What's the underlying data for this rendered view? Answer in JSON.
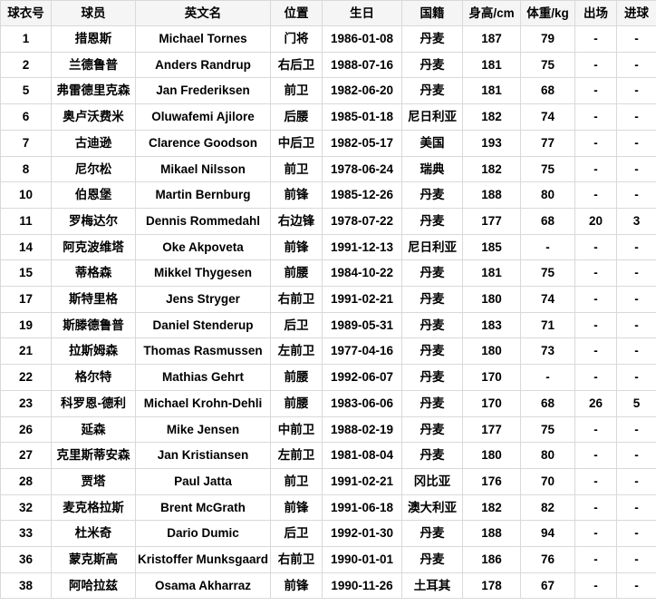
{
  "colors": {
    "header_background": "#f5f5f5",
    "row_background": "#ffffff",
    "grid_border": "#d9d9d9",
    "text": "#000000"
  },
  "table": {
    "columns": [
      {
        "key": "number",
        "label": "球衣号"
      },
      {
        "key": "name-cn",
        "label": "球员"
      },
      {
        "key": "name-en",
        "label": "英文名"
      },
      {
        "key": "position",
        "label": "位置"
      },
      {
        "key": "birthday",
        "label": "生日"
      },
      {
        "key": "nationality",
        "label": "国籍"
      },
      {
        "key": "height",
        "label": "身高/cm"
      },
      {
        "key": "weight",
        "label": "体重/kg"
      },
      {
        "key": "appearances",
        "label": "出场"
      },
      {
        "key": "goals",
        "label": "进球"
      }
    ],
    "rows": [
      [
        "1",
        "措恩斯",
        "Michael Tornes",
        "门将",
        "1986-01-08",
        "丹麦",
        "187",
        "79",
        "-",
        "-"
      ],
      [
        "2",
        "兰德鲁普",
        "Anders Randrup",
        "右后卫",
        "1988-07-16",
        "丹麦",
        "181",
        "75",
        "-",
        "-"
      ],
      [
        "5",
        "弗雷德里克森",
        "Jan Frederiksen",
        "前卫",
        "1982-06-20",
        "丹麦",
        "181",
        "68",
        "-",
        "-"
      ],
      [
        "6",
        "奥卢沃费米",
        "Oluwafemi Ajilore",
        "后腰",
        "1985-01-18",
        "尼日利亚",
        "182",
        "74",
        "-",
        "-"
      ],
      [
        "7",
        "古迪逊",
        "Clarence Goodson",
        "中后卫",
        "1982-05-17",
        "美国",
        "193",
        "77",
        "-",
        "-"
      ],
      [
        "8",
        "尼尔松",
        "Mikael Nilsson",
        "前卫",
        "1978-06-24",
        "瑞典",
        "182",
        "75",
        "-",
        "-"
      ],
      [
        "10",
        "伯恩堡",
        "Martin Bernburg",
        "前锋",
        "1985-12-26",
        "丹麦",
        "188",
        "80",
        "-",
        "-"
      ],
      [
        "11",
        "罗梅达尔",
        "Dennis Rommedahl",
        "右边锋",
        "1978-07-22",
        "丹麦",
        "177",
        "68",
        "20",
        "3"
      ],
      [
        "14",
        "阿克波维塔",
        "Oke Akpoveta",
        "前锋",
        "1991-12-13",
        "尼日利亚",
        "185",
        "-",
        "-",
        "-"
      ],
      [
        "15",
        "蒂格森",
        "Mikkel Thygesen",
        "前腰",
        "1984-10-22",
        "丹麦",
        "181",
        "75",
        "-",
        "-"
      ],
      [
        "17",
        "斯特里格",
        "Jens Stryger",
        "右前卫",
        "1991-02-21",
        "丹麦",
        "180",
        "74",
        "-",
        "-"
      ],
      [
        "19",
        "斯滕德鲁普",
        "Daniel Stenderup",
        "后卫",
        "1989-05-31",
        "丹麦",
        "183",
        "71",
        "-",
        "-"
      ],
      [
        "21",
        "拉斯姆森",
        "Thomas Rasmussen",
        "左前卫",
        "1977-04-16",
        "丹麦",
        "180",
        "73",
        "-",
        "-"
      ],
      [
        "22",
        "格尔特",
        "Mathias Gehrt",
        "前腰",
        "1992-06-07",
        "丹麦",
        "170",
        "-",
        "-",
        "-"
      ],
      [
        "23",
        "科罗恩-德利",
        "Michael Krohn-Dehli",
        "前腰",
        "1983-06-06",
        "丹麦",
        "170",
        "68",
        "26",
        "5"
      ],
      [
        "26",
        "延森",
        "Mike Jensen",
        "中前卫",
        "1988-02-19",
        "丹麦",
        "177",
        "75",
        "-",
        "-"
      ],
      [
        "27",
        "克里斯蒂安森",
        "Jan Kristiansen",
        "左前卫",
        "1981-08-04",
        "丹麦",
        "180",
        "80",
        "-",
        "-"
      ],
      [
        "28",
        "贾塔",
        "Paul Jatta",
        "前卫",
        "1991-02-21",
        "冈比亚",
        "176",
        "70",
        "-",
        "-"
      ],
      [
        "32",
        "麦克格拉斯",
        "Brent McGrath",
        "前锋",
        "1991-06-18",
        "澳大利亚",
        "182",
        "82",
        "-",
        "-"
      ],
      [
        "33",
        "杜米奇",
        "Dario Dumic",
        "后卫",
        "1992-01-30",
        "丹麦",
        "188",
        "94",
        "-",
        "-"
      ],
      [
        "36",
        "蒙克斯高",
        "Kristoffer Munksgaard",
        "右前卫",
        "1990-01-01",
        "丹麦",
        "186",
        "76",
        "-",
        "-"
      ],
      [
        "38",
        "阿哈拉兹",
        "Osama Akharraz",
        "前锋",
        "1990-11-26",
        "土耳其",
        "178",
        "67",
        "-",
        "-"
      ]
    ]
  }
}
